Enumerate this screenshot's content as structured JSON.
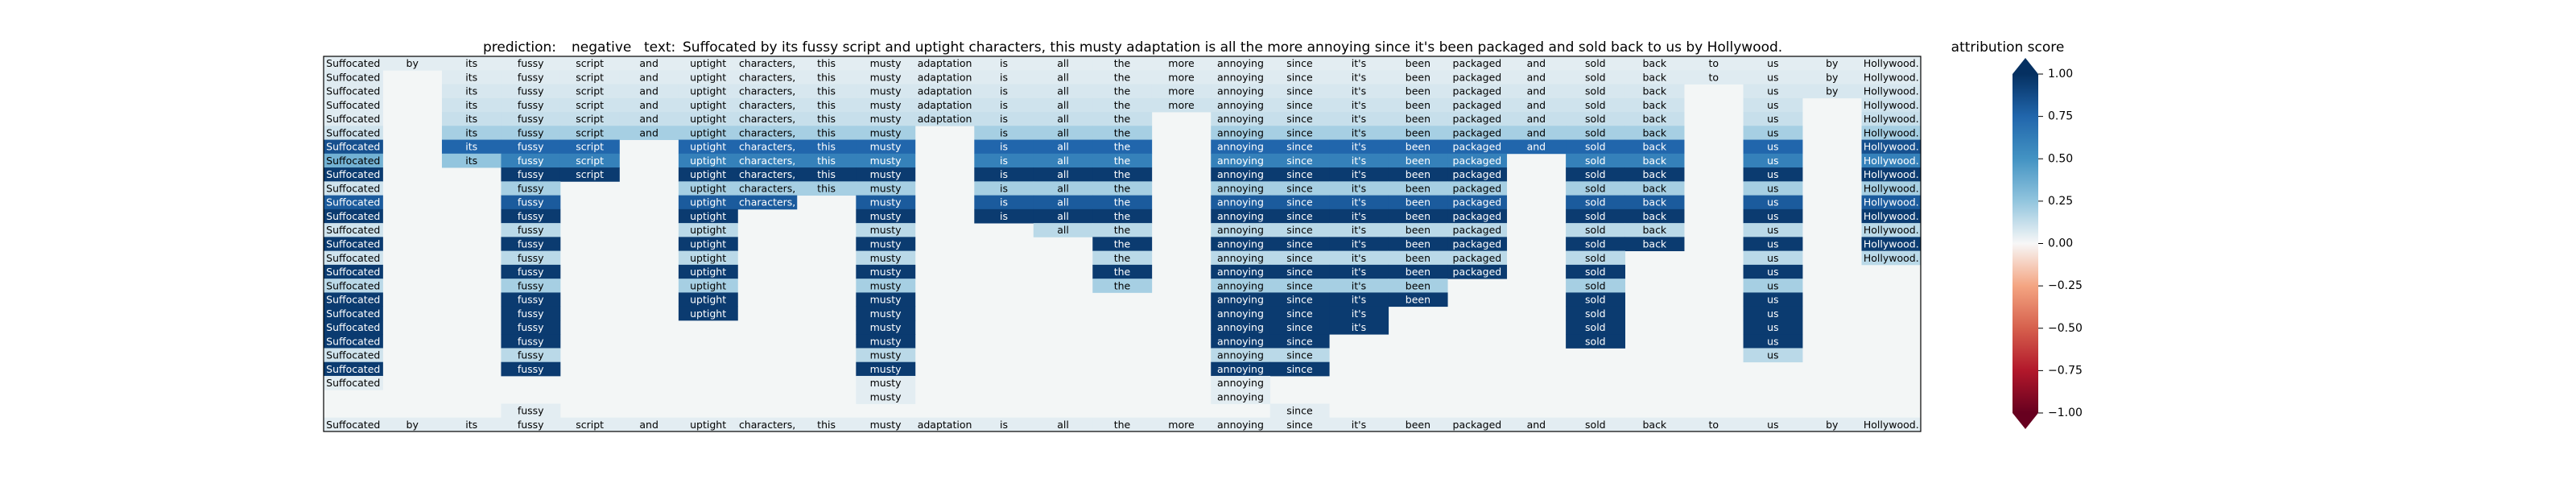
{
  "header": {
    "prediction_label": "prediction:",
    "prediction_value": "negative",
    "text_label": "text:",
    "text_value": "Suffocated by its fussy script and uptight characters, this musty adaptation is all the more annoying since it's been packaged and sold back to us by Hollywood."
  },
  "colorbar": {
    "title": "attribution score",
    "ticks": [
      "1.00",
      "0.75",
      "0.50",
      "0.25",
      "0.00",
      "−0.25",
      "−0.50",
      "−0.75",
      "−1.00"
    ],
    "colormap": "RdBu",
    "range": [
      -1,
      1
    ]
  },
  "chart_data": {
    "type": "heatmap",
    "title": "prediction:  negative     text:  Suffocated by its fussy script and uptight characters, this musty adaptation is all the more annoying since it's been packaged and sold back to us by Hollywood.",
    "tokens": [
      "Suffocated",
      "by",
      "its",
      "fussy",
      "script",
      "and",
      "uptight",
      "characters,",
      "this",
      "musty",
      "adaptation",
      "is",
      "all",
      "the",
      "more",
      "annoying",
      "since",
      "it's",
      "been",
      "packaged",
      "and",
      "sold",
      "back",
      "to",
      "us",
      "by",
      "Hollywood."
    ],
    "value_range": [
      -1,
      1
    ],
    "rows": [
      [
        0.05,
        0.05,
        0.05,
        0.05,
        0.05,
        0.05,
        0.05,
        0.05,
        0.05,
        0.05,
        0.05,
        0.05,
        0.05,
        0.05,
        0.05,
        0.05,
        0.05,
        0.05,
        0.05,
        0.05,
        0.05,
        0.05,
        0.05,
        0.05,
        0.05,
        0.05,
        0.05
      ],
      [
        0.06,
        null,
        0.06,
        0.06,
        0.06,
        0.06,
        0.06,
        0.06,
        0.06,
        0.06,
        0.06,
        0.06,
        0.06,
        0.06,
        0.06,
        0.06,
        0.06,
        0.06,
        0.06,
        0.06,
        0.06,
        0.06,
        0.06,
        0.06,
        0.06,
        0.06,
        0.06
      ],
      [
        0.06,
        null,
        0.08,
        0.08,
        0.08,
        0.08,
        0.08,
        0.08,
        0.08,
        0.08,
        0.08,
        0.08,
        0.08,
        0.08,
        0.08,
        0.08,
        0.08,
        0.08,
        0.08,
        0.08,
        0.08,
        0.08,
        0.08,
        null,
        0.08,
        0.08,
        0.08
      ],
      [
        0.06,
        null,
        0.1,
        0.1,
        0.1,
        0.1,
        0.1,
        0.1,
        0.1,
        0.1,
        0.1,
        0.1,
        0.1,
        0.1,
        0.1,
        0.1,
        0.1,
        0.1,
        0.1,
        0.1,
        0.1,
        0.1,
        0.1,
        null,
        0.1,
        null,
        0.1
      ],
      [
        0.06,
        null,
        0.12,
        0.12,
        0.12,
        0.12,
        0.12,
        0.12,
        0.12,
        0.12,
        0.12,
        0.12,
        0.12,
        0.12,
        null,
        0.12,
        0.12,
        0.12,
        0.12,
        0.12,
        0.12,
        0.12,
        0.12,
        null,
        0.12,
        null,
        0.12
      ],
      [
        0.1,
        null,
        0.2,
        0.2,
        0.2,
        0.2,
        0.2,
        0.2,
        0.2,
        0.2,
        null,
        0.2,
        0.2,
        0.2,
        null,
        0.2,
        0.2,
        0.2,
        0.2,
        0.2,
        0.2,
        0.2,
        0.2,
        null,
        0.2,
        null,
        0.2
      ],
      [
        0.85,
        null,
        0.75,
        0.75,
        0.75,
        null,
        0.75,
        0.75,
        0.75,
        0.75,
        null,
        0.75,
        0.75,
        0.75,
        null,
        0.75,
        0.75,
        0.75,
        0.75,
        0.75,
        0.75,
        0.75,
        0.75,
        null,
        0.75,
        null,
        0.85
      ],
      [
        0.35,
        null,
        0.25,
        0.6,
        0.6,
        null,
        0.6,
        0.6,
        0.6,
        0.6,
        null,
        0.6,
        0.6,
        0.6,
        null,
        0.6,
        0.6,
        0.6,
        0.6,
        0.6,
        null,
        0.6,
        0.6,
        null,
        0.6,
        null,
        0.6
      ],
      [
        0.95,
        null,
        null,
        0.95,
        0.95,
        null,
        0.95,
        0.95,
        0.95,
        0.95,
        null,
        0.95,
        0.95,
        0.95,
        null,
        0.95,
        0.95,
        0.95,
        0.95,
        0.95,
        null,
        0.95,
        0.95,
        null,
        0.95,
        null,
        0.95
      ],
      [
        0.1,
        null,
        null,
        0.2,
        null,
        null,
        0.2,
        0.2,
        0.2,
        0.2,
        null,
        0.2,
        0.2,
        0.2,
        null,
        0.2,
        0.2,
        0.2,
        0.2,
        0.2,
        null,
        0.2,
        0.2,
        null,
        0.2,
        null,
        0.2
      ],
      [
        0.8,
        null,
        null,
        0.8,
        null,
        null,
        0.8,
        0.8,
        null,
        0.8,
        null,
        0.8,
        0.8,
        0.8,
        null,
        0.8,
        0.8,
        0.8,
        0.8,
        0.8,
        null,
        0.8,
        0.8,
        null,
        0.8,
        null,
        0.8
      ],
      [
        0.95,
        null,
        null,
        0.95,
        null,
        null,
        0.95,
        null,
        null,
        0.95,
        null,
        0.95,
        0.95,
        0.95,
        null,
        0.95,
        0.95,
        0.95,
        0.95,
        0.95,
        null,
        0.95,
        0.95,
        null,
        0.95,
        null,
        0.95
      ],
      [
        0.1,
        null,
        null,
        0.15,
        null,
        null,
        0.15,
        null,
        null,
        0.15,
        null,
        null,
        0.15,
        0.15,
        null,
        0.15,
        0.15,
        0.15,
        0.15,
        0.15,
        null,
        0.15,
        0.15,
        null,
        0.15,
        null,
        0.15
      ],
      [
        0.95,
        null,
        null,
        0.95,
        null,
        null,
        0.95,
        null,
        null,
        0.95,
        null,
        null,
        null,
        0.95,
        null,
        0.95,
        0.95,
        0.95,
        0.95,
        0.95,
        null,
        0.95,
        0.95,
        null,
        0.95,
        null,
        0.95
      ],
      [
        0.1,
        null,
        null,
        0.15,
        null,
        null,
        0.15,
        null,
        null,
        0.15,
        null,
        null,
        null,
        0.15,
        null,
        0.15,
        0.15,
        0.15,
        0.15,
        0.15,
        null,
        0.15,
        null,
        null,
        0.15,
        null,
        0.15
      ],
      [
        0.95,
        null,
        null,
        0.95,
        null,
        null,
        0.95,
        null,
        null,
        0.95,
        null,
        null,
        null,
        0.95,
        null,
        0.95,
        0.95,
        0.95,
        0.95,
        0.95,
        null,
        0.95,
        null,
        null,
        0.95,
        null,
        null
      ],
      [
        0.15,
        null,
        null,
        0.2,
        null,
        null,
        0.2,
        null,
        null,
        0.2,
        null,
        null,
        null,
        0.2,
        null,
        0.2,
        0.2,
        0.2,
        0.2,
        null,
        null,
        0.2,
        null,
        null,
        0.2,
        null,
        null
      ],
      [
        0.95,
        null,
        null,
        0.95,
        null,
        null,
        0.95,
        null,
        null,
        0.95,
        null,
        null,
        null,
        null,
        null,
        0.95,
        0.95,
        0.95,
        0.95,
        null,
        null,
        0.95,
        null,
        null,
        0.95,
        null,
        null
      ],
      [
        0.95,
        null,
        null,
        0.95,
        null,
        null,
        0.95,
        null,
        null,
        0.95,
        null,
        null,
        null,
        null,
        null,
        0.95,
        0.95,
        0.95,
        null,
        null,
        null,
        0.95,
        null,
        null,
        0.95,
        null,
        null
      ],
      [
        0.95,
        null,
        null,
        0.95,
        null,
        null,
        null,
        null,
        null,
        0.95,
        null,
        null,
        null,
        null,
        null,
        0.95,
        0.95,
        0.95,
        null,
        null,
        null,
        0.95,
        null,
        null,
        0.95,
        null,
        null
      ],
      [
        0.95,
        null,
        null,
        0.95,
        null,
        null,
        null,
        null,
        null,
        0.95,
        null,
        null,
        null,
        null,
        null,
        0.95,
        0.95,
        null,
        null,
        null,
        null,
        0.95,
        null,
        null,
        0.95,
        null,
        null
      ],
      [
        0.1,
        null,
        null,
        0.15,
        null,
        null,
        null,
        null,
        null,
        0.15,
        null,
        null,
        null,
        null,
        null,
        0.15,
        0.15,
        null,
        null,
        null,
        null,
        null,
        null,
        null,
        0.15,
        null,
        null
      ],
      [
        0.95,
        null,
        null,
        0.95,
        null,
        null,
        null,
        null,
        null,
        0.95,
        null,
        null,
        null,
        null,
        null,
        0.95,
        0.95,
        null,
        null,
        null,
        null,
        null,
        null,
        null,
        null,
        null,
        null
      ],
      [
        0.05,
        null,
        null,
        null,
        null,
        null,
        null,
        null,
        null,
        0.05,
        null,
        null,
        null,
        null,
        null,
        0.05,
        null,
        null,
        null,
        null,
        null,
        null,
        null,
        null,
        null,
        null,
        null
      ],
      [
        null,
        null,
        null,
        null,
        null,
        null,
        null,
        null,
        null,
        0.05,
        null,
        null,
        null,
        null,
        null,
        0.05,
        null,
        null,
        null,
        null,
        null,
        null,
        null,
        null,
        null,
        null,
        null
      ],
      [
        null,
        null,
        null,
        0.05,
        null,
        null,
        null,
        null,
        null,
        null,
        null,
        null,
        null,
        null,
        null,
        null,
        0.05,
        null,
        null,
        null,
        null,
        null,
        null,
        null,
        null,
        null,
        null
      ],
      [
        0.05,
        0.05,
        0.05,
        0.05,
        0.05,
        0.05,
        0.05,
        0.05,
        0.05,
        0.05,
        0.05,
        0.05,
        0.05,
        0.05,
        0.05,
        0.05,
        0.05,
        0.05,
        0.05,
        0.05,
        0.05,
        0.05,
        0.05,
        0.05,
        0.05,
        0.05,
        0.05
      ]
    ]
  }
}
